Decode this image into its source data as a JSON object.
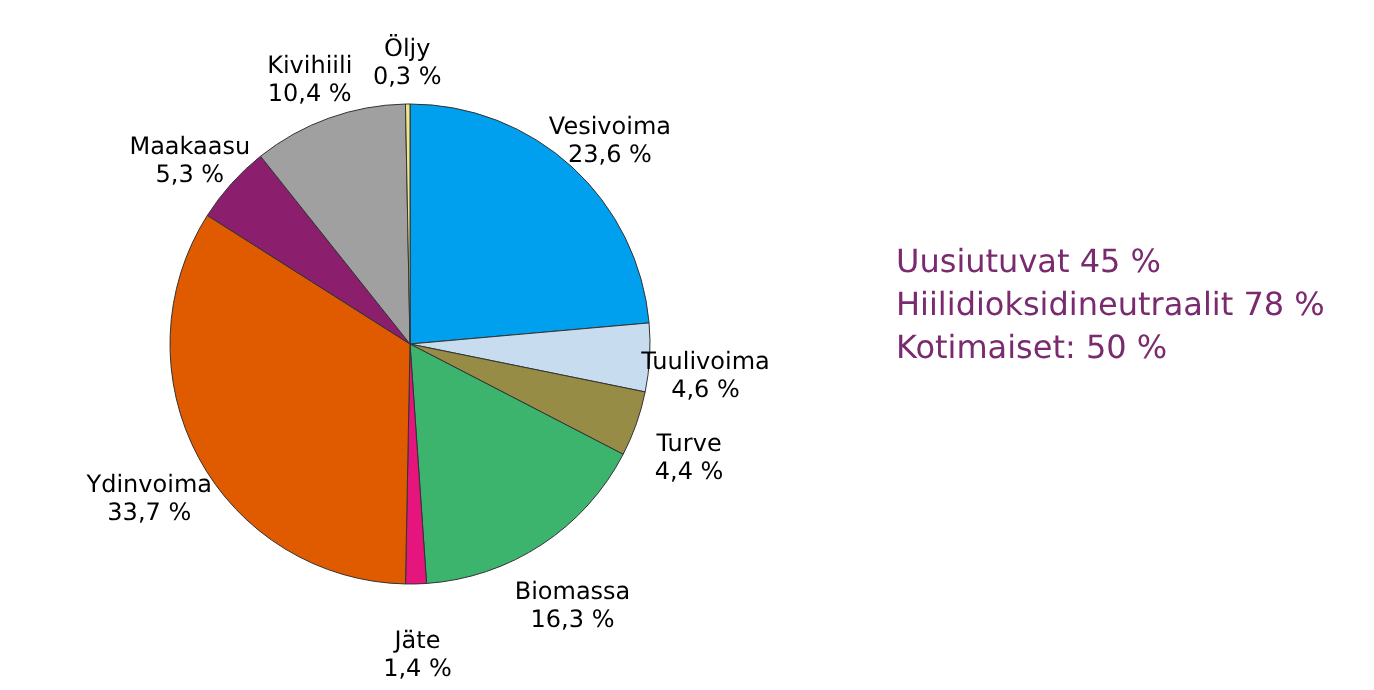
{
  "chart_data": {
    "type": "pie",
    "categories": [
      "Vesivoima",
      "Tuulivoima",
      "Turve",
      "Biomassa",
      "Jäte",
      "Ydinvoima",
      "Maakaasu",
      "Kivihiili",
      "Öljy"
    ],
    "values": [
      23.6,
      4.6,
      4.4,
      16.3,
      1.4,
      33.7,
      5.3,
      10.4,
      0.3
    ],
    "value_labels": [
      "23,6 %",
      "4,6 %",
      "4,4 %",
      "16,3 %",
      "1,4 %",
      "33,7 %",
      "5,3 %",
      "10,4 %",
      "0,3 %"
    ],
    "colors": [
      "#00a0ee",
      "#c8dcf0",
      "#968c46",
      "#3cb46e",
      "#e6147d",
      "#e05a00",
      "#8c1e6e",
      "#a0a0a0",
      "#f0e68c"
    ],
    "annotations": [
      "Uusiutuvat 45 %",
      "Hiilidioksidineutraalit 78 %",
      "Kotimaiset: 50 %"
    ]
  }
}
